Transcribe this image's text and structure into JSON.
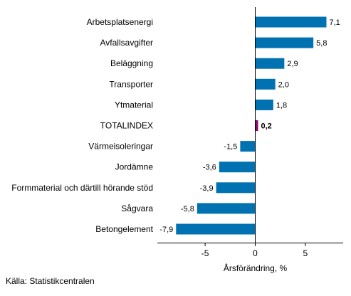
{
  "chart_data": {
    "type": "bar",
    "orientation": "horizontal",
    "categories": [
      "Arbetsplatsenergi",
      "Avfallsavgifter",
      "Beläggning",
      "Transporter",
      "Ytmaterial",
      "TOTALINDEX",
      "Värmeisoleringar",
      "Jordämne",
      "Formmaterial och därtill hörande stöd",
      "Sågvara",
      "Betongelement"
    ],
    "values": [
      7.1,
      5.8,
      2.9,
      2.0,
      1.8,
      0.2,
      -1.5,
      -3.6,
      -3.9,
      -5.8,
      -7.9
    ],
    "value_labels": [
      "7,1",
      "5,8",
      "2,9",
      "2,0",
      "1,8",
      "0,2",
      "-1,5",
      "-3,6",
      "-3,9",
      "-5,8",
      "-7,9"
    ],
    "highlight_category": "TOTALINDEX",
    "xlabel": "Årsförändring, %",
    "xticks": [
      -5,
      0,
      5
    ],
    "xtick_labels": [
      "-5",
      "0",
      "5"
    ],
    "xlim": [
      -9.5,
      8.6
    ],
    "grid": false,
    "colors": {
      "bar": "#0072b2",
      "highlight": "#8b0a6b",
      "axis": "#000000"
    }
  },
  "source": "Källa: Statistikcentralen"
}
